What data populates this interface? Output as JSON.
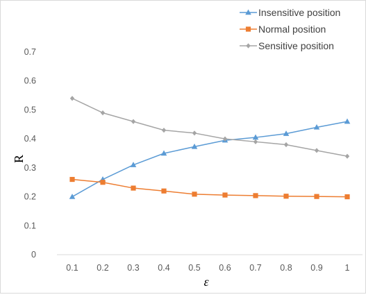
{
  "chart_data": {
    "type": "line",
    "title": "",
    "xlabel": "ε",
    "ylabel": "R",
    "categories": [
      "0.1",
      "0.2",
      "0.3",
      "0.4",
      "0.5",
      "0.6",
      "0.7",
      "0.8",
      "0.9",
      "1"
    ],
    "y_ticks": [
      "0",
      "0.1",
      "0.2",
      "0.3",
      "0.4",
      "0.5",
      "0.6",
      "0.7"
    ],
    "ylim": [
      0,
      0.7
    ],
    "grid": false,
    "legend_position": "top-right",
    "series": [
      {
        "name": "Insensitive position",
        "color": "#5B9BD5",
        "marker": "triangle",
        "values": [
          0.2,
          0.26,
          0.31,
          0.35,
          0.373,
          0.395,
          0.405,
          0.418,
          0.44,
          0.46
        ]
      },
      {
        "name": "Normal position",
        "color": "#ED7D31",
        "marker": "square",
        "values": [
          0.26,
          0.25,
          0.23,
          0.22,
          0.209,
          0.206,
          0.204,
          0.202,
          0.201,
          0.2
        ]
      },
      {
        "name": "Sensitive position",
        "color": "#A5A5A5",
        "marker": "diamond",
        "values": [
          0.54,
          0.49,
          0.46,
          0.43,
          0.42,
          0.4,
          0.39,
          0.38,
          0.36,
          0.34
        ]
      }
    ]
  }
}
